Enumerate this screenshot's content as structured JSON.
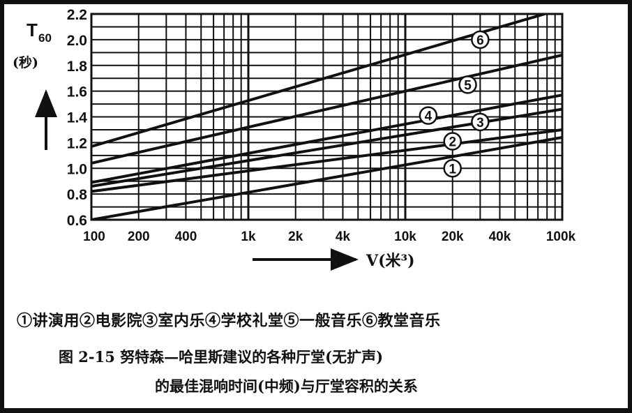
{
  "chart_data": {
    "type": "line",
    "x": [
      100,
      100000
    ],
    "xscale": "log",
    "ylim": [
      0.6,
      2.2
    ],
    "x_tick_labels": [
      "100",
      "200",
      "400",
      "1k",
      "2k",
      "4k",
      "10k",
      "20k",
      "40k",
      "100k"
    ],
    "x_tick_values": [
      100,
      200,
      400,
      1000,
      2000,
      4000,
      10000,
      20000,
      40000,
      100000
    ],
    "y_tick_labels": [
      "0.6",
      "0.8",
      "1.0",
      "1.2",
      "1.4",
      "1.6",
      "1.8",
      "2.0",
      "2.2"
    ],
    "y_tick_values": [
      0.6,
      0.8,
      1.0,
      1.2,
      1.4,
      1.6,
      1.8,
      2.0,
      2.2
    ],
    "ylabel_main": "T",
    "ylabel_sub": "60",
    "ylabel_unit": "(秒)",
    "xlabel": "V(米³)",
    "series": [
      {
        "name": "①",
        "values": [
          0.6,
          1.24
        ],
        "marker": [
          20000,
          1.0
        ]
      },
      {
        "name": "②",
        "values": [
          0.82,
          1.3
        ],
        "marker": [
          20000,
          1.21
        ]
      },
      {
        "name": "③",
        "values": [
          0.86,
          1.46
        ],
        "marker": [
          30000,
          1.36
        ]
      },
      {
        "name": "④",
        "values": [
          0.89,
          1.57
        ],
        "marker": [
          14000,
          1.41
        ]
      },
      {
        "name": "⑤",
        "values": [
          1.04,
          1.88
        ],
        "marker": [
          25000,
          1.65
        ]
      },
      {
        "name": "⑥",
        "values": [
          1.17,
          2.24
        ],
        "marker": [
          30000,
          2.0
        ]
      }
    ],
    "grid": true
  },
  "legend_text": "①讲演用②电影院③室内乐④学校礼堂⑤一般音乐⑥教堂音乐",
  "caption_line1": "图 2-15  努特森—哈里斯建议的各种厅堂(无扩声)",
  "caption_line2": "的最佳混响时间(中频)与厅堂容积的关系"
}
